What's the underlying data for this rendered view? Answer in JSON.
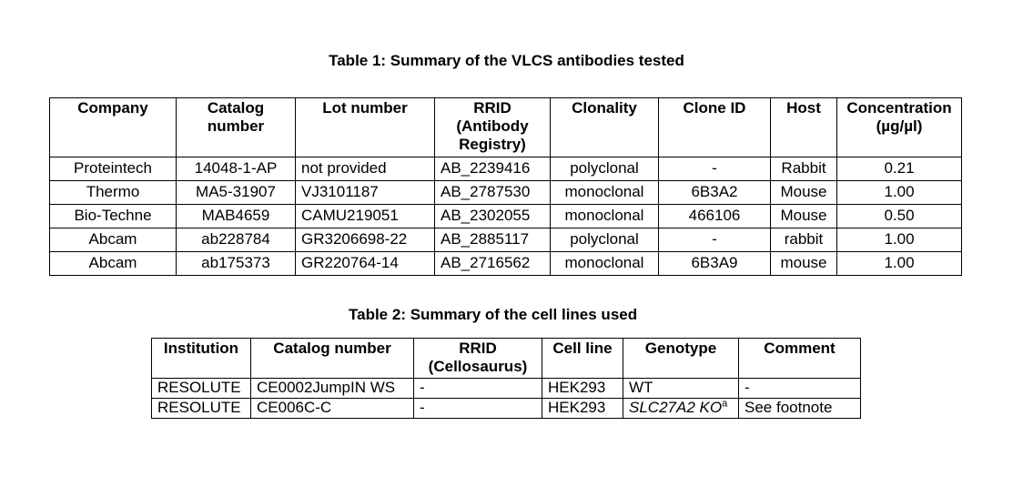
{
  "table1": {
    "caption": "Table 1: Summary of the VLCS antibodies tested",
    "headers": [
      [
        "Company"
      ],
      [
        "Catalog",
        "number"
      ],
      [
        "Lot number"
      ],
      [
        "RRID",
        "(Antibody",
        "Registry)"
      ],
      [
        "Clonality"
      ],
      [
        "Clone ID"
      ],
      [
        "Host"
      ],
      [
        "Concentration",
        "(µg/µl)"
      ]
    ],
    "rows": [
      [
        "Proteintech",
        "14048-1-AP",
        "not provided",
        "AB_2239416",
        "polyclonal",
        "-",
        "Rabbit",
        "0.21"
      ],
      [
        "Thermo",
        "MA5-31907",
        "VJ3101187",
        "AB_2787530",
        "monoclonal",
        "6B3A2",
        "Mouse",
        "1.00"
      ],
      [
        "Bio-Techne",
        "MAB4659",
        "CAMU219051",
        "AB_2302055",
        "monoclonal",
        "466106",
        "Mouse",
        "0.50"
      ],
      [
        "Abcam",
        "ab228784",
        "GR3206698-22",
        "AB_2885117",
        "polyclonal",
        "-",
        "rabbit",
        "1.00"
      ],
      [
        "Abcam",
        "ab175373",
        "GR220764-14",
        "AB_2716562",
        "monoclonal",
        "6B3A9",
        "mouse",
        "1.00"
      ]
    ]
  },
  "table2": {
    "caption": "Table 2: Summary of the cell lines used",
    "headers": [
      [
        "Institution"
      ],
      [
        "Catalog number"
      ],
      [
        "RRID",
        "(Cellosaurus)"
      ],
      [
        "Cell line"
      ],
      [
        "Genotype"
      ],
      [
        "Comment"
      ]
    ],
    "rows": [
      [
        "RESOLUTE",
        "CE0002JumpIN WS",
        "-",
        "HEK293",
        "WT",
        "-"
      ],
      [
        "RESOLUTE",
        "CE006C-C",
        "-",
        "HEK293",
        "SLC27A2 KO",
        "See footnote"
      ]
    ],
    "genotype_superscript": "a"
  }
}
